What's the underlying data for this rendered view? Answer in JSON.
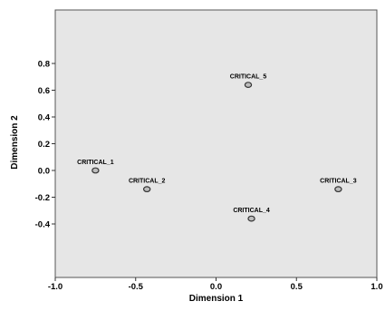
{
  "chart_data": {
    "type": "scatter",
    "title": "",
    "xlabel": "Dimension 1",
    "ylabel": "Dimension 2",
    "xlim": [
      -1.0,
      1.0
    ],
    "ylim": [
      -0.8,
      1.2
    ],
    "xticks": [
      -1.0,
      -0.5,
      0.0,
      0.5,
      1.0
    ],
    "xtick_labels": [
      "-1.0",
      "-0.5",
      "0.0",
      "0.5",
      "1.0"
    ],
    "yticks": [
      0.8,
      0.6,
      0.4,
      0.2,
      0.0,
      -0.2,
      -0.4
    ],
    "ytick_labels": [
      "0.8",
      "0.6",
      "0.4",
      "0.2",
      "0.0",
      "-0.2",
      "-0.4"
    ],
    "grid": false,
    "legend": "none",
    "plot_background": "#e6e6e6",
    "marker_stroke": "#333333",
    "marker_fill": "#bdbdbd",
    "points": [
      {
        "label": "CRITICAL_1",
        "x": -0.75,
        "y": 0.0
      },
      {
        "label": "CRITICAL_2",
        "x": -0.43,
        "y": -0.14
      },
      {
        "label": "CRITICAL_3",
        "x": 0.76,
        "y": -0.14
      },
      {
        "label": "CRITICAL_4",
        "x": 0.22,
        "y": -0.36
      },
      {
        "label": "CRITICAL_5",
        "x": 0.2,
        "y": 0.64
      }
    ]
  }
}
